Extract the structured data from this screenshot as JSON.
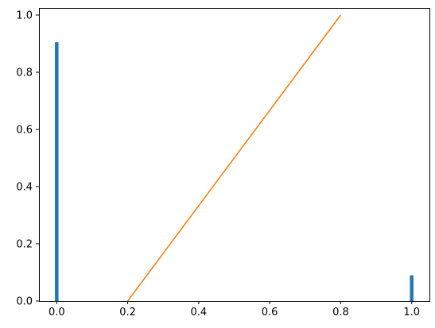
{
  "chart_data": {
    "type": "bar",
    "title": "",
    "xlabel": "",
    "ylabel": "",
    "xlim": [
      -0.05,
      1.05
    ],
    "ylim": [
      0,
      1.025
    ],
    "grid": false,
    "x_ticks": [
      0.0,
      0.2,
      0.4,
      0.6,
      0.8,
      1.0
    ],
    "x_tick_labels": [
      "0.0",
      "0.2",
      "0.4",
      "0.6",
      "0.8",
      "1.0"
    ],
    "y_ticks": [
      0.0,
      0.2,
      0.4,
      0.6,
      0.8,
      1.0
    ],
    "y_tick_labels": [
      "0.0",
      "0.2",
      "0.4",
      "0.6",
      "0.8",
      "1.0"
    ],
    "series": [
      {
        "type": "bar",
        "color": "#1f77b4",
        "bar_width": 0.01,
        "x": [
          0.0,
          1.0
        ],
        "values": [
          0.905,
          0.09
        ]
      },
      {
        "type": "line",
        "color": "#ff7f0e",
        "x": [
          0.2,
          0.8
        ],
        "values": [
          0.0,
          1.0
        ]
      }
    ]
  }
}
